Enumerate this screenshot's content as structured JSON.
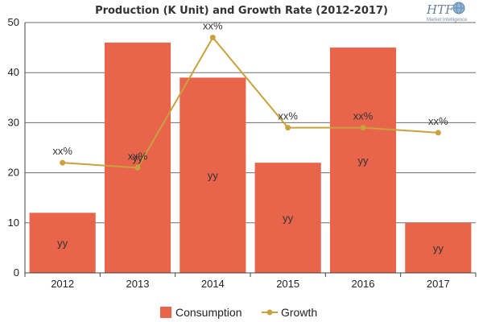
{
  "chart_data": {
    "type": "bar",
    "title": "Production (K Unit) and Growth Rate (2012-2017)",
    "categories": [
      "2012",
      "2013",
      "2014",
      "2015",
      "2016",
      "2017"
    ],
    "ylim": [
      0,
      50
    ],
    "yticks": [
      "0",
      "10",
      "20",
      "30",
      "40",
      "50"
    ],
    "grid": true,
    "legend_position": "bottom",
    "series": [
      {
        "name": "Consumption",
        "type": "bar",
        "color": "#e8644b",
        "values": [
          12,
          46,
          39,
          22,
          45,
          10
        ],
        "data_labels": [
          "yy",
          "yy",
          "yy",
          "yy",
          "yy",
          "yy"
        ]
      },
      {
        "name": "Growth",
        "type": "line",
        "color": "#c9a13d",
        "values": [
          22,
          21,
          47,
          29,
          29,
          28
        ],
        "data_labels": [
          "xx%",
          "xx%",
          "xx%",
          "xx%",
          "xx%",
          "xx%"
        ]
      }
    ]
  },
  "logo": {
    "text": "HTF",
    "subtext": "Market Intelligence",
    "icon": "globe-icon"
  }
}
